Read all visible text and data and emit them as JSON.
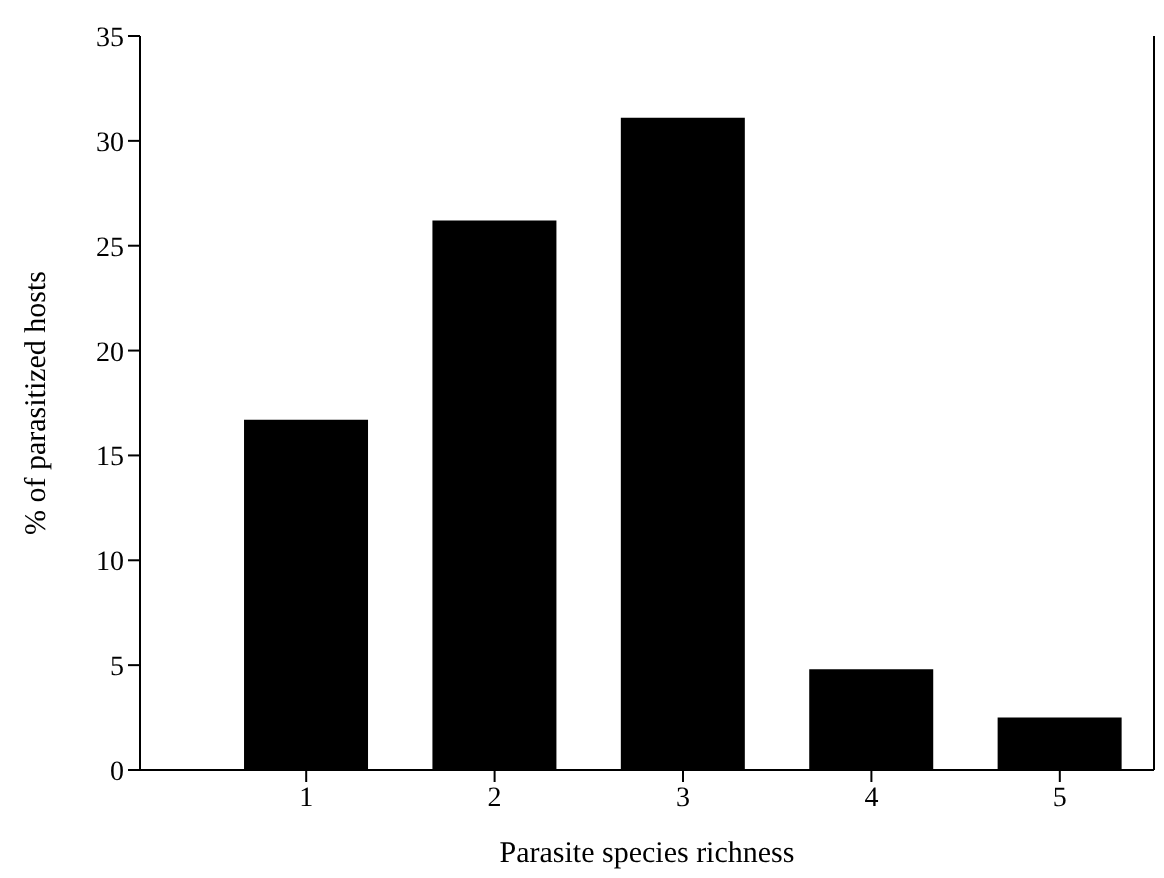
{
  "chart_data": {
    "type": "bar",
    "xlabel": "Parasite species richness",
    "ylabel": "% of parasitized hosts",
    "categories": [
      "1",
      "2",
      "3",
      "4",
      "5"
    ],
    "values": [
      16.7,
      26.2,
      31.1,
      4.8,
      2.5
    ],
    "color": "#000000",
    "ylim": [
      0,
      35
    ],
    "yticks": [
      0,
      5,
      10,
      15,
      20,
      25,
      30,
      35
    ]
  }
}
